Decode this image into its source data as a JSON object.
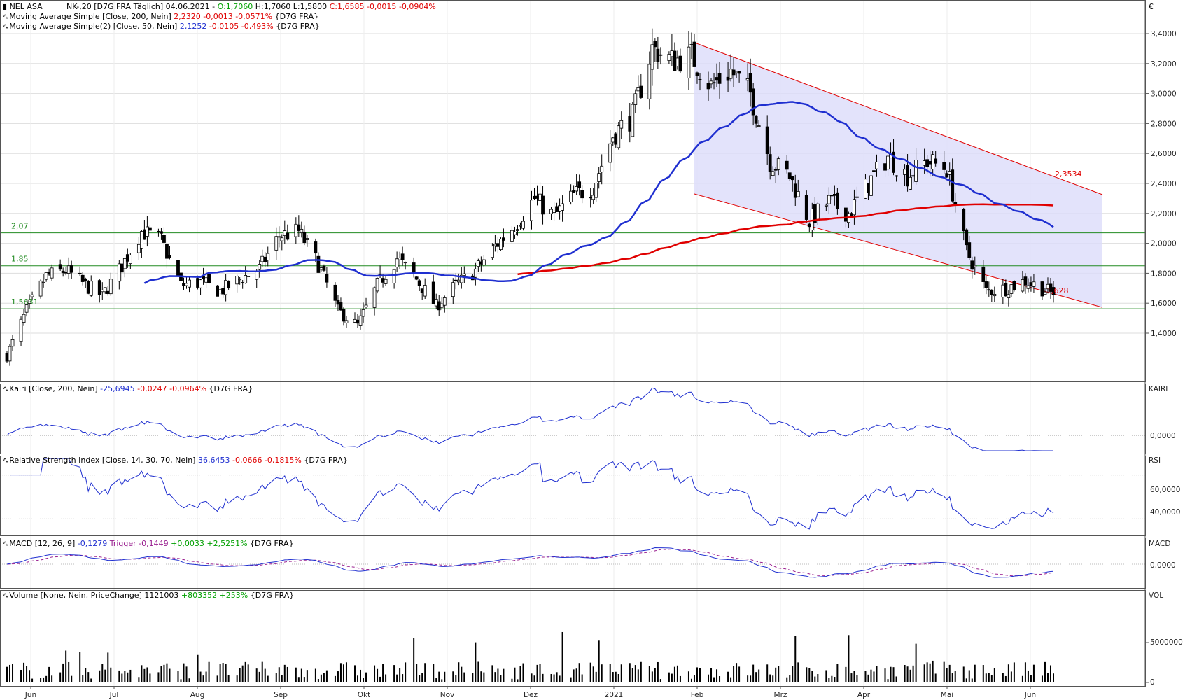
{
  "currency_symbol": "€",
  "x_labels": [
    "Jun",
    "Jul",
    "Aug",
    "Sep",
    "Okt",
    "Nov",
    "Dez",
    "2021",
    "Feb",
    "Mrz",
    "Apr",
    "Mai",
    "Jun"
  ],
  "panels": {
    "price": {
      "line1": {
        "prefix": "NEL ASA",
        "code": "NK-,20 [D7G FRA  Täglich]",
        "date": "04.06.2021",
        "open": "O:1,7060",
        "high": "H:1,7060",
        "low": "L:1,5800",
        "close": "C:1,6585",
        "chg": "-0,0015",
        "pct": "-0,0904%"
      },
      "line2": {
        "label": "Moving Average Simple [Close, 200, Nein]",
        "value": "2,2320",
        "chg": "-0,0013",
        "pct": "-0,0571%",
        "src": "{D7G FRA}"
      },
      "line3": {
        "label": "Moving Average Simple(2) [Close, 50, Nein]",
        "value": "2,1252",
        "chg": "-0,0105",
        "pct": "-0,493%",
        "src": "{D7G FRA}"
      },
      "ticks": [
        "3,4000",
        "3,2000",
        "3,0000",
        "2,8000",
        "2,6000",
        "2,4000",
        "2,2000",
        "2,0000",
        "1,8000",
        "1,6000",
        "1,4000"
      ],
      "hlines": [
        {
          "label": "2,07",
          "value": 2.07
        },
        {
          "label": "1,85",
          "value": 1.85
        },
        {
          "label": "1,5631",
          "value": 1.5631
        }
      ],
      "channel_upper_label": "2,3534",
      "channel_lower_label": "1,628"
    },
    "kairi": {
      "header": "Kairi [Close, 200, Nein]",
      "value": "-25,6945",
      "chg": "-0,0247",
      "pct": "-0,0964%",
      "src": "{D7G FRA}",
      "axis_title": "KAIRI",
      "tick": "0,0000"
    },
    "rsi": {
      "header": "Relative Strength Index [Close, 14, 30, 70, Nein]",
      "value": "36,6453",
      "chg": "-0,0666",
      "pct": "-0,1815%",
      "src": "{D7G FRA}",
      "axis_title": "RSI",
      "ticks": [
        "60,0000",
        "40,0000"
      ]
    },
    "macd": {
      "header": "MACD [12, 26, 9]",
      "value": "-0,1279",
      "trigger_label": "Trigger",
      "trigger": "-0,1449",
      "chg": "+0,0033",
      "pct": "+2,5251%",
      "src": "{D7G FRA}",
      "axis_title": "MACD",
      "tick": "0,0000"
    },
    "volume": {
      "header": "Volume [None, Nein, PriceChange]",
      "value": "1121003",
      "chg": "+803352",
      "pct": "+253%",
      "src": "{D7G FRA}",
      "axis_title": "VOL",
      "ticks": [
        "5000000",
        "0"
      ]
    }
  },
  "colors": {
    "up": "#ffffff",
    "down": "#000000",
    "ma200": "#e00000",
    "ma50": "#1f2fd0",
    "support": "#228b22",
    "channel": "#e00000",
    "channel_fill": "#dcdcfa",
    "indicator": "#2030d0",
    "trigger": "#9a2090",
    "positive": "#00a000",
    "negative": "#e00000"
  },
  "chart_data": {
    "type": "candlestick",
    "title": "NEL ASA",
    "period": "Täglich",
    "x_range": [
      "2020-05-27",
      "2021-06-04"
    ],
    "ylim": [
      1.2,
      3.48
    ],
    "last_bar": {
      "date": "2021-06-04",
      "open": 1.706,
      "high": 1.706,
      "low": 1.58,
      "close": 1.6585
    },
    "close_anchors": [
      [
        "2020-05-27",
        1.25
      ],
      [
        "2020-06-03",
        1.55
      ],
      [
        "2020-06-10",
        1.78
      ],
      [
        "2020-06-17",
        1.82
      ],
      [
        "2020-06-24",
        1.72
      ],
      [
        "2020-06-30",
        1.65
      ],
      [
        "2020-07-07",
        1.85
      ],
      [
        "2020-07-14",
        2.08
      ],
      [
        "2020-07-21",
        2.02
      ],
      [
        "2020-07-28",
        1.72
      ],
      [
        "2020-08-04",
        1.74
      ],
      [
        "2020-08-11",
        1.68
      ],
      [
        "2020-08-18",
        1.76
      ],
      [
        "2020-08-25",
        1.83
      ],
      [
        "2020-09-01",
        2.05
      ],
      [
        "2020-09-08",
        2.08
      ],
      [
        "2020-09-15",
        1.86
      ],
      [
        "2020-09-22",
        1.55
      ],
      [
        "2020-09-29",
        1.45
      ],
      [
        "2020-10-06",
        1.72
      ],
      [
        "2020-10-13",
        1.9
      ],
      [
        "2020-10-20",
        1.76
      ],
      [
        "2020-10-27",
        1.58
      ],
      [
        "2020-11-03",
        1.72
      ],
      [
        "2020-11-10",
        1.82
      ],
      [
        "2020-11-17",
        1.98
      ],
      [
        "2020-11-24",
        2.12
      ],
      [
        "2020-12-01",
        2.3
      ],
      [
        "2020-12-08",
        2.18
      ],
      [
        "2020-12-15",
        2.32
      ],
      [
        "2020-12-22",
        2.38
      ],
      [
        "2020-12-29",
        2.72
      ],
      [
        "2021-01-05",
        2.85
      ],
      [
        "2021-01-12",
        3.3
      ],
      [
        "2021-01-19",
        3.22
      ],
      [
        "2021-01-26",
        3.25
      ],
      [
        "2021-02-02",
        3.05
      ],
      [
        "2021-02-09",
        3.15
      ],
      [
        "2021-02-16",
        3.0
      ],
      [
        "2021-02-23",
        2.55
      ],
      [
        "2021-03-02",
        2.45
      ],
      [
        "2021-03-09",
        2.15
      ],
      [
        "2021-03-16",
        2.28
      ],
      [
        "2021-03-23",
        2.2
      ],
      [
        "2021-03-30",
        2.4
      ],
      [
        "2021-04-06",
        2.58
      ],
      [
        "2021-04-13",
        2.45
      ],
      [
        "2021-04-20",
        2.55
      ],
      [
        "2021-04-27",
        2.5
      ],
      [
        "2021-05-04",
        1.95
      ],
      [
        "2021-05-11",
        1.68
      ],
      [
        "2021-05-18",
        1.7
      ],
      [
        "2021-05-25",
        1.75
      ],
      [
        "2021-06-01",
        1.69
      ],
      [
        "2021-06-04",
        1.6585
      ]
    ],
    "moving_averages": [
      {
        "name": "Moving Average Simple [Close, 200, Nein]",
        "last": 2.232
      },
      {
        "name": "Moving Average Simple(2) [Close, 50, Nein]",
        "last": 2.1252
      }
    ],
    "support_levels": [
      2.07,
      1.85,
      1.5631
    ],
    "trend_channel": {
      "start": "2021-01-27",
      "end": "2021-06-04",
      "upper_end": 2.3534,
      "lower_end": 1.628,
      "upper_start": 3.34,
      "lower_start": 2.33
    },
    "indicators": {
      "kairi": {
        "last": -25.6945
      },
      "rsi": {
        "last": 36.6453,
        "bands": [
          30,
          70
        ]
      },
      "macd": {
        "last": -0.1279,
        "trigger": -0.1449
      },
      "volume": {
        "last": 1121003,
        "max_approx": 8500000
      }
    }
  }
}
